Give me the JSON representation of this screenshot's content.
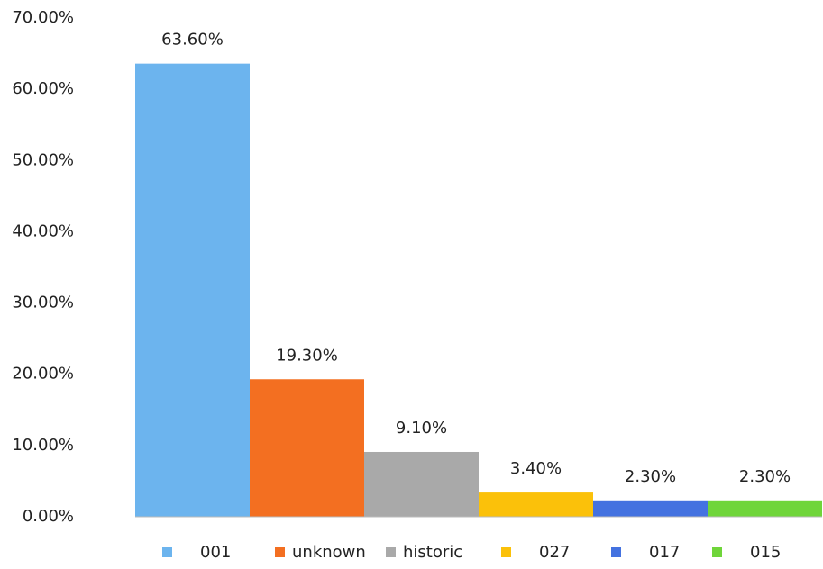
{
  "chart_data": {
    "type": "bar",
    "series": [
      {
        "name": "001",
        "color": "#6cb4ee",
        "values": [
          63.6
        ],
        "value_labels": [
          "63.60%"
        ]
      },
      {
        "name": "unknown",
        "color": "#f36f21",
        "values": [
          19.3
        ],
        "value_labels": [
          "19.30%"
        ]
      },
      {
        "name": "historic",
        "color": "#a9a9a9",
        "values": [
          9.1
        ],
        "value_labels": [
          "9.10%"
        ]
      },
      {
        "name": "027",
        "color": "#fbc10a",
        "values": [
          3.4
        ],
        "value_labels": [
          "3.40%"
        ]
      },
      {
        "name": "017",
        "color": "#4472e0",
        "values": [
          2.3
        ],
        "value_labels": [
          "2.30%"
        ]
      },
      {
        "name": "015",
        "color": "#6fd53a",
        "values": [
          2.3
        ],
        "value_labels": [
          "2.30%"
        ]
      }
    ],
    "ylim": [
      0,
      70
    ],
    "yticks": [
      {
        "value": 0,
        "label": "0.00%"
      },
      {
        "value": 10,
        "label": "10.00%"
      },
      {
        "value": 20,
        "label": "20.00%"
      },
      {
        "value": 30,
        "label": "30.00%"
      },
      {
        "value": 40,
        "label": "40.00%"
      },
      {
        "value": 50,
        "label": "50.00%"
      },
      {
        "value": 60,
        "label": "60.00%"
      },
      {
        "value": 70,
        "label": "70.00%"
      }
    ],
    "grid": false,
    "legend": "bottom"
  }
}
